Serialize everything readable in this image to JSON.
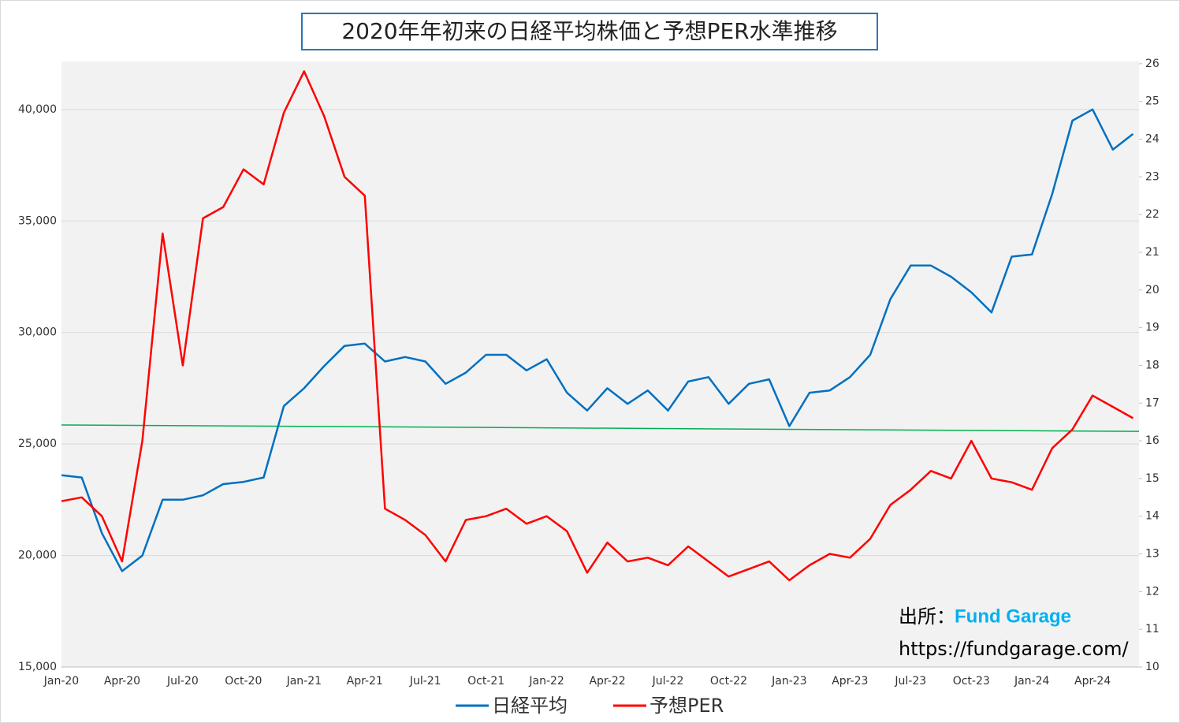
{
  "chart_data": {
    "type": "line",
    "title": "2020年年初来の日経平均株価と予想PER水準推移",
    "categories": [
      "Jan-20",
      null,
      null,
      "Apr-20",
      null,
      null,
      "Jul-20",
      null,
      null,
      "Oct-20",
      null,
      null,
      "Jan-21",
      null,
      null,
      "Apr-21",
      null,
      null,
      "Jul-21",
      null,
      null,
      "Oct-21",
      null,
      null,
      "Jan-22",
      null,
      null,
      "Apr-22",
      null,
      null,
      "Jul-22",
      null,
      null,
      "Oct-22",
      null,
      null,
      "Jan-23",
      null,
      null,
      "Apr-23",
      null,
      null,
      "Jul-23",
      null,
      null,
      "Oct-23",
      null,
      null,
      "Jan-24",
      null,
      null,
      "Apr-24",
      null,
      null
    ],
    "series": [
      {
        "name": "日経平均",
        "color": "#0070c0",
        "axis": "y",
        "values": [
          23600,
          23500,
          21000,
          19300,
          20000,
          22500,
          22500,
          22700,
          23200,
          23300,
          23500,
          26700,
          27500,
          28500,
          29400,
          29500,
          28700,
          28900,
          28700,
          27700,
          28200,
          29000,
          29000,
          28300,
          28800,
          27300,
          26500,
          27500,
          26800,
          27400,
          26500,
          27800,
          28000,
          26800,
          27700,
          27900,
          25800,
          27300,
          27400,
          28000,
          29000,
          31500,
          33000,
          33000,
          32500,
          31800,
          30900,
          33400,
          33500,
          36200,
          39500,
          40000,
          38200,
          38900
        ]
      },
      {
        "name": "予想PER",
        "color": "#ff0000",
        "axis": "y2",
        "values": [
          14.4,
          14.5,
          14.0,
          12.8,
          16.0,
          21.5,
          18.0,
          21.9,
          22.2,
          23.2,
          22.8,
          24.7,
          25.8,
          24.6,
          23.0,
          22.5,
          14.2,
          13.9,
          13.5,
          12.8,
          13.9,
          14.0,
          14.2,
          13.8,
          14.0,
          13.6,
          12.5,
          13.3,
          12.8,
          12.9,
          12.7,
          13.2,
          12.8,
          12.4,
          12.6,
          12.8,
          12.3,
          12.7,
          13.0,
          12.9,
          13.4,
          14.3,
          14.7,
          15.2,
          15.0,
          16.0,
          15.0,
          14.9,
          14.7,
          15.8,
          16.3,
          17.2,
          16.9,
          16.6
        ]
      }
    ],
    "reference_line": {
      "axis": "y2",
      "color": "#00b050",
      "values": [
        16.42,
        16.25
      ]
    },
    "ylim": [
      15000,
      42150
    ],
    "yticks": [
      {
        "value": 15000,
        "label": "15,000"
      },
      {
        "value": 20000,
        "label": "20,000"
      },
      {
        "value": 25000,
        "label": "25,000"
      },
      {
        "value": 30000,
        "label": "30,000"
      },
      {
        "value": 35000,
        "label": "35,000"
      },
      {
        "value": 40000,
        "label": "40,000"
      }
    ],
    "y2lim": [
      10,
      26.06
    ],
    "y2ticks": [
      10,
      11,
      12,
      13,
      14,
      15,
      16,
      17,
      18,
      19,
      20,
      21,
      22,
      23,
      24,
      25,
      26
    ],
    "grid": true,
    "legend": "bottom",
    "annotations": [
      "出所：",
      "Fund Garage",
      "https://fundgarage.com/"
    ]
  }
}
